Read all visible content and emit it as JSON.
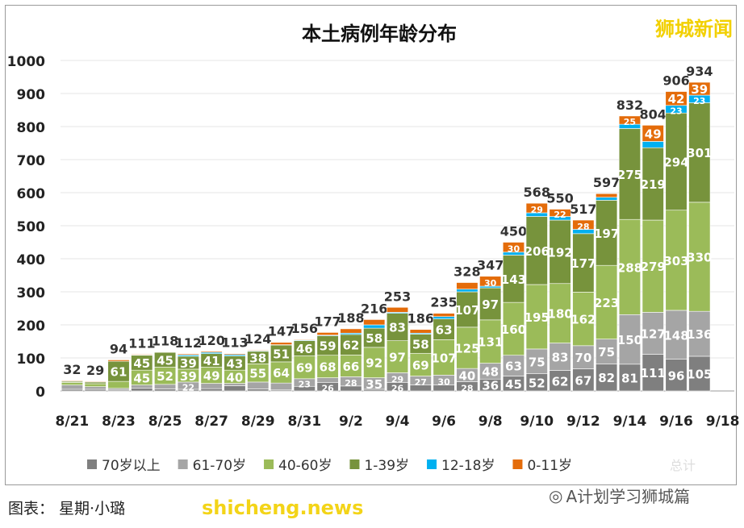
{
  "chart_data": {
    "type": "bar",
    "stacked": true,
    "title": "本土病例年龄分布",
    "categories": [
      "8/21",
      "8/22",
      "8/23",
      "8/24",
      "8/25",
      "8/26",
      "8/27",
      "8/28",
      "8/29",
      "8/30",
      "8/31",
      "9/1",
      "9/2",
      "9/3",
      "9/4",
      "9/5",
      "9/6",
      "9/7",
      "9/8",
      "9/9",
      "9/10",
      "9/11",
      "9/12",
      "9/13",
      "9/14",
      "9/15",
      "9/16",
      "9/17",
      "9/18"
    ],
    "xtick_labels": [
      "8/21",
      "8/23",
      "8/25",
      "8/27",
      "8/29",
      "8/31",
      "9/2",
      "9/4",
      "9/6",
      "9/8",
      "9/10",
      "9/12",
      "9/14",
      "9/16",
      "9/18"
    ],
    "ylim": [
      0,
      1000
    ],
    "yticks": [
      0,
      100,
      200,
      300,
      400,
      500,
      600,
      700,
      800,
      900,
      1000
    ],
    "grid": true,
    "legend_position": "bottom",
    "series": [
      {
        "name": "70岁以上",
        "color": "#7f7f7f",
        "values": [
          5,
          5,
          3,
          8,
          6,
          5,
          7,
          16,
          6,
          3,
          14,
          26,
          15,
          5,
          26,
          18,
          18,
          28,
          36,
          45,
          52,
          62,
          67,
          82,
          81,
          111,
          96,
          105,
          null
        ]
      },
      {
        "name": "61-70岁",
        "color": "#a5a5a5",
        "values": [
          13,
          8,
          5,
          10,
          14,
          22,
          16,
          7,
          21,
          21,
          23,
          14,
          28,
          35,
          29,
          27,
          30,
          40,
          48,
          63,
          75,
          83,
          70,
          75,
          150,
          127,
          148,
          136,
          null
        ]
      },
      {
        "name": "40-60岁",
        "color": "#9bbb59",
        "values": [
          8,
          9,
          21,
          45,
          52,
          39,
          49,
          40,
          55,
          64,
          69,
          68,
          66,
          92,
          97,
          69,
          107,
          125,
          131,
          160,
          195,
          180,
          162,
          223,
          288,
          279,
          303,
          330,
          null
        ]
      },
      {
        "name": "1-39岁",
        "color": "#77933c",
        "values": [
          3,
          5,
          61,
          45,
          45,
          39,
          41,
          43,
          38,
          51,
          46,
          59,
          62,
          58,
          83,
          58,
          63,
          107,
          97,
          143,
          206,
          192,
          177,
          197,
          275,
          219,
          294,
          301,
          null
        ]
      },
      {
        "name": "12-18岁",
        "color": "#00b0f0",
        "values": [
          1,
          0,
          0,
          1,
          0,
          4,
          4,
          4,
          2,
          1,
          2,
          2,
          4,
          10,
          3,
          3,
          7,
          8,
          5,
          9,
          11,
          11,
          13,
          9,
          13,
          19,
          23,
          23,
          null
        ]
      },
      {
        "name": "0-11岁",
        "color": "#e46c0a",
        "values": [
          2,
          2,
          4,
          2,
          1,
          3,
          3,
          3,
          2,
          7,
          2,
          8,
          13,
          16,
          15,
          11,
          10,
          20,
          30,
          30,
          29,
          22,
          28,
          11,
          25,
          49,
          42,
          39,
          null
        ]
      }
    ],
    "totals": [
      32,
      29,
      94,
      111,
      118,
      112,
      120,
      113,
      124,
      147,
      156,
      177,
      188,
      216,
      253,
      186,
      235,
      328,
      347,
      450,
      568,
      550,
      517,
      597,
      832,
      804,
      906,
      934,
      null
    ],
    "legend_extra": "总计"
  },
  "watermark_top": "狮城新闻",
  "watermark_bottom": "shicheng.news",
  "credit": "图表： 星期·小璐",
  "wechat_account": "A计划学习狮城篇"
}
